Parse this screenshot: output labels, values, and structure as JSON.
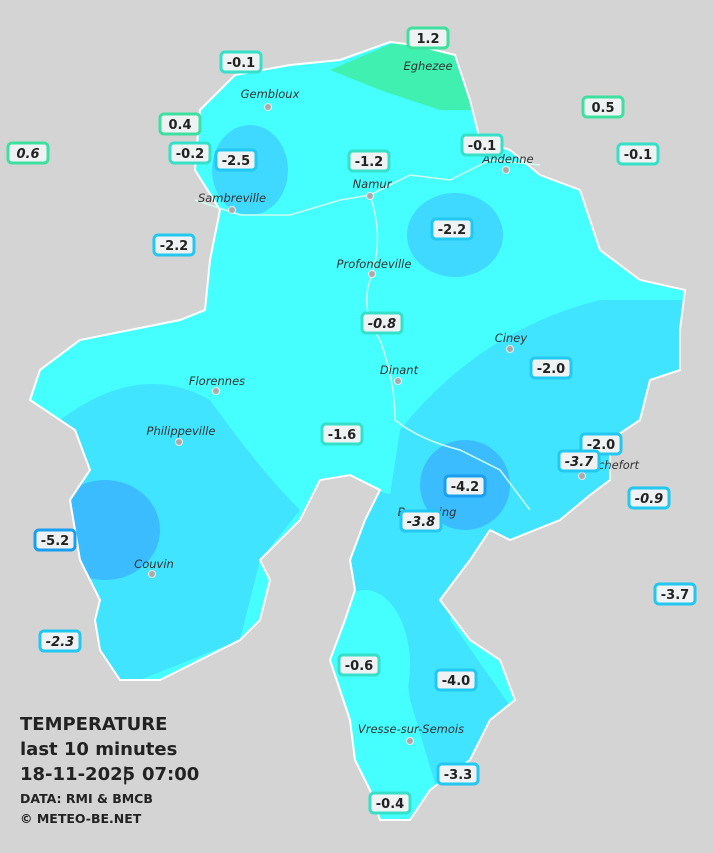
{
  "legend": {
    "title": "TEMPERATURE",
    "period": "last 10 minutes",
    "date": "18-11-2025",
    "separator": "|",
    "time": "07:00",
    "source": "DATA: RMI & BMCB",
    "copyright": "© METEO-BE.NET"
  },
  "cities": [
    "Eghezee",
    "Gembloux",
    "Andenne",
    "Namur",
    "Sambreville",
    "Profondeville",
    "Ciney",
    "Dinant",
    "Florennes",
    "Philippeville",
    "Couvin",
    "Beauraing",
    "Rochefort",
    "Vresse-sur-Semois"
  ],
  "stations": [
    {
      "label": "1.2",
      "color": "#3ee0a0"
    },
    {
      "label": "-0.1",
      "color": "#36e0c8"
    },
    {
      "label": "0.4",
      "color": "#3ee0a0"
    },
    {
      "label": "0.5",
      "color": "#3ee0a0"
    },
    {
      "label": "0.6",
      "color": "#3ee0a0",
      "italic": true
    },
    {
      "label": "-0.2",
      "color": "#36e0c8"
    },
    {
      "label": "-2.5",
      "color": "#22c8f0"
    },
    {
      "label": "-1.2",
      "color": "#36e0c8"
    },
    {
      "label": "-0.1",
      "color": "#36e0c8"
    },
    {
      "label": "-0.1",
      "color": "#36e0c8"
    },
    {
      "label": "-2.2",
      "color": "#22c8f0"
    },
    {
      "label": "-2.2",
      "color": "#22c8f0"
    },
    {
      "label": "-0.8",
      "color": "#36e0c8",
      "italic": true
    },
    {
      "label": "-2.0",
      "color": "#22c8f0"
    },
    {
      "label": "-1.6",
      "color": "#36e0c8"
    },
    {
      "label": "-2.0",
      "color": "#22c8f0"
    },
    {
      "label": "-3.7",
      "color": "#22c8f0",
      "italic": true
    },
    {
      "label": "-0.9",
      "color": "#22c8f0",
      "italic": true
    },
    {
      "label": "-4.2",
      "color": "#1a9ef0"
    },
    {
      "label": "-3.8",
      "color": "#22c8f0",
      "italic": true
    },
    {
      "label": "-5.2",
      "color": "#1a9ef0"
    },
    {
      "label": "-3.7",
      "color": "#22c8f0"
    },
    {
      "label": "-2.3",
      "color": "#22c8f0",
      "italic": true
    },
    {
      "label": "-0.6",
      "color": "#36e0c8"
    },
    {
      "label": "-4.0",
      "color": "#22c8f0"
    },
    {
      "label": "-3.3",
      "color": "#22c8f0"
    },
    {
      "label": "-0.4",
      "color": "#36e0c8"
    }
  ]
}
